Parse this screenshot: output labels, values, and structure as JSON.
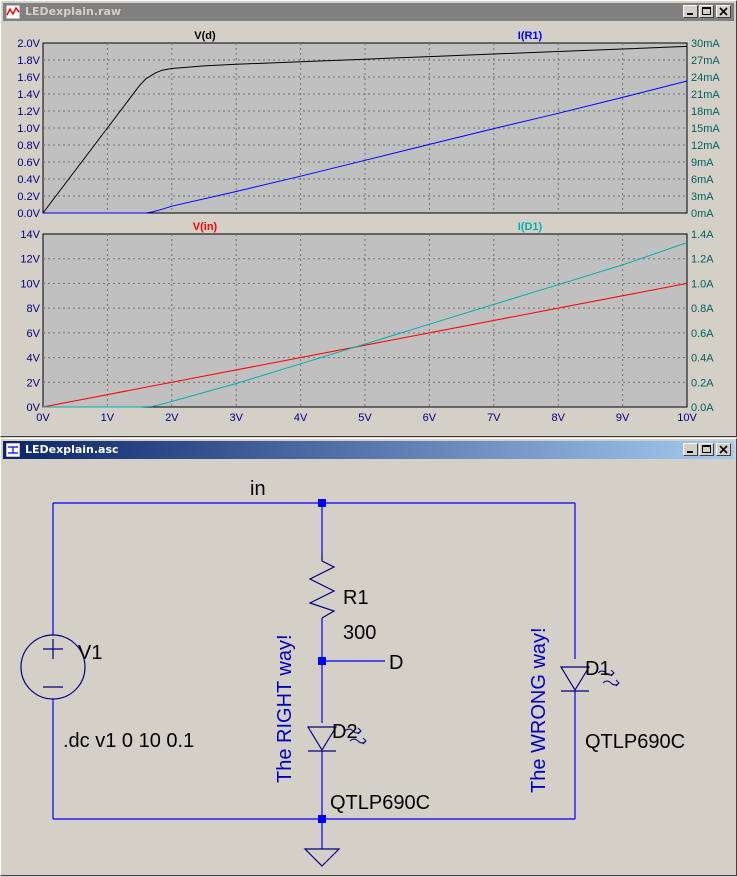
{
  "plot_window": {
    "title": "LEDexplain.raw",
    "minimize_icon": "minimize-icon",
    "maximize_icon": "maximize-icon",
    "close_icon": "close-icon"
  },
  "schematic_window": {
    "title": "LEDexplain.asc",
    "minimize_icon": "minimize-icon",
    "maximize_icon": "maximize-icon",
    "close_icon": "close-icon"
  },
  "chart_data": [
    {
      "type": "line",
      "title": "",
      "xlim": [
        0,
        10
      ],
      "x_ticks": [
        "0V",
        "1V",
        "2V",
        "3V",
        "4V",
        "5V",
        "6V",
        "7V",
        "8V",
        "9V",
        "10V"
      ],
      "ylim_left": [
        0,
        2.0
      ],
      "left_ticks": [
        "0.0V",
        "0.2V",
        "0.4V",
        "0.6V",
        "0.8V",
        "1.0V",
        "1.2V",
        "1.4V",
        "1.6V",
        "1.8V",
        "2.0V"
      ],
      "ylim_right": [
        0,
        30
      ],
      "right_ticks": [
        "0mA",
        "3mA",
        "6mA",
        "9mA",
        "12mA",
        "15mA",
        "18mA",
        "21mA",
        "24mA",
        "27mA",
        "30mA"
      ],
      "grid": true,
      "series": [
        {
          "name": "V(d)",
          "axis": "left",
          "color": "#000000",
          "x": [
            0,
            0.5,
            1.0,
            1.5,
            1.6,
            1.75,
            1.85,
            2.0,
            2.5,
            3,
            4,
            5,
            6,
            7,
            8,
            9,
            10
          ],
          "y": [
            0,
            0.5,
            1.0,
            1.5,
            1.58,
            1.65,
            1.68,
            1.7,
            1.73,
            1.75,
            1.78,
            1.81,
            1.84,
            1.87,
            1.9,
            1.93,
            1.96
          ]
        },
        {
          "name": "I(R1)",
          "axis": "right",
          "color": "#0000ff",
          "x": [
            0,
            1.5,
            1.6,
            1.7,
            1.8,
            2,
            3,
            4,
            5,
            6,
            7,
            8,
            9,
            10
          ],
          "y": [
            0,
            0,
            0,
            0.2,
            0.5,
            1.2,
            3.8,
            6.5,
            9.3,
            12.1,
            14.9,
            17.6,
            20.4,
            23.3
          ]
        }
      ]
    },
    {
      "type": "line",
      "title": "",
      "xlim": [
        0,
        10
      ],
      "x_ticks": [
        "0V",
        "1V",
        "2V",
        "3V",
        "4V",
        "5V",
        "6V",
        "7V",
        "8V",
        "9V",
        "10V"
      ],
      "ylim_left": [
        0,
        14
      ],
      "left_ticks": [
        "0V",
        "2V",
        "4V",
        "6V",
        "8V",
        "10V",
        "12V",
        "14V"
      ],
      "ylim_right": [
        0,
        1.4
      ],
      "right_ticks": [
        "0.0A",
        "0.2A",
        "0.4A",
        "0.6A",
        "0.8A",
        "1.0A",
        "1.2A",
        "1.4A"
      ],
      "grid": true,
      "series": [
        {
          "name": "V(in)",
          "axis": "left",
          "color": "#ff0000",
          "x": [
            0,
            10
          ],
          "y": [
            0,
            10
          ]
        },
        {
          "name": "I(D1)",
          "axis": "right",
          "color": "#00b0b0",
          "x": [
            0,
            1.5,
            1.7,
            1.9,
            2.1,
            3,
            4,
            5,
            6,
            7,
            8,
            9,
            10
          ],
          "y": [
            0,
            0,
            0.005,
            0.03,
            0.06,
            0.19,
            0.35,
            0.51,
            0.67,
            0.83,
            0.99,
            1.15,
            1.33
          ]
        }
      ]
    }
  ],
  "schematic": {
    "net_in": "in",
    "net_d": "D",
    "v1_name": "V1",
    "v1_directive": ".dc v1 0 10 0.1",
    "r1_name": "R1",
    "r1_value": "300",
    "d2_name": "D2",
    "d2_model": "QTLP690C",
    "d1_name": "D1",
    "d1_model": "QTLP690C",
    "comment_right": "The RIGHT way!",
    "comment_wrong": "The WRONG way!",
    "wire_color": "#0000ff",
    "component_color": "#000080",
    "comment_color": "#0000c0"
  }
}
